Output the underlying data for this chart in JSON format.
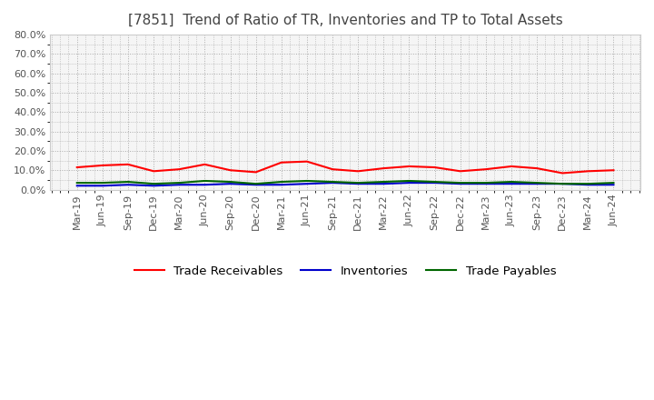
{
  "title": "[7851]  Trend of Ratio of TR, Inventories and TP to Total Assets",
  "x_labels": [
    "Mar-19",
    "Jun-19",
    "Sep-19",
    "Dec-19",
    "Mar-20",
    "Jun-20",
    "Sep-20",
    "Dec-20",
    "Mar-21",
    "Jun-21",
    "Sep-21",
    "Dec-21",
    "Mar-22",
    "Jun-22",
    "Sep-22",
    "Dec-22",
    "Mar-23",
    "Jun-23",
    "Sep-23",
    "Dec-23",
    "Mar-24",
    "Jun-24"
  ],
  "trade_receivables": [
    11.5,
    12.5,
    13.0,
    9.5,
    10.5,
    13.0,
    10.0,
    9.0,
    14.0,
    14.5,
    10.5,
    9.5,
    11.0,
    12.0,
    11.5,
    9.5,
    10.5,
    12.0,
    11.0,
    8.5,
    9.5,
    10.0
  ],
  "inventories": [
    2.0,
    2.0,
    2.5,
    2.0,
    2.5,
    2.5,
    3.0,
    2.5,
    2.5,
    3.0,
    3.5,
    3.0,
    3.0,
    3.5,
    3.5,
    3.0,
    3.0,
    3.0,
    3.0,
    3.0,
    2.5,
    2.5
  ],
  "trade_payables": [
    3.5,
    3.5,
    4.0,
    3.0,
    3.5,
    4.5,
    4.0,
    3.0,
    4.0,
    4.5,
    4.0,
    3.5,
    4.0,
    4.5,
    4.0,
    3.5,
    3.5,
    4.0,
    3.5,
    3.0,
    3.0,
    3.5
  ],
  "tr_color": "#ff0000",
  "inv_color": "#0000cc",
  "tp_color": "#006600",
  "ylim": [
    0,
    80
  ],
  "yticks": [
    0,
    10,
    20,
    30,
    40,
    50,
    60,
    70,
    80
  ],
  "background_color": "#ffffff",
  "plot_bg_color": "#f5f5f5",
  "grid_color": "#aaaaaa",
  "title_fontsize": 11,
  "tick_fontsize": 8
}
